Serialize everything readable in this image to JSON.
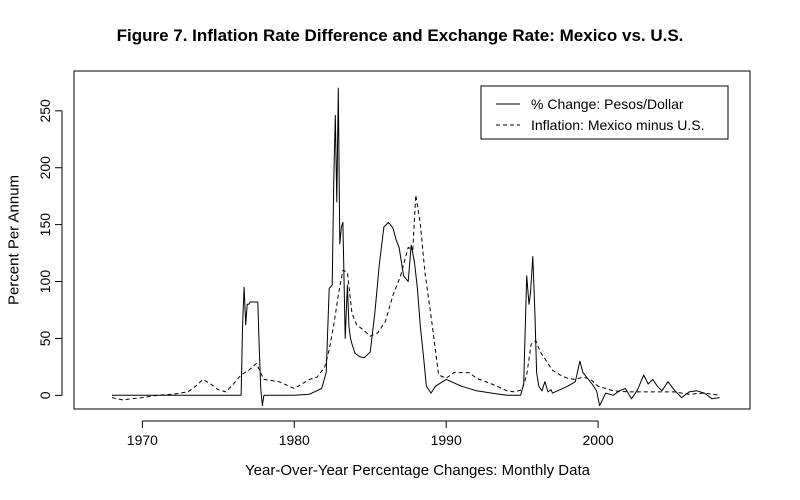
{
  "chart_data": {
    "type": "line",
    "title": "Figure 7. Inflation Rate Difference and Exchange Rate: Mexico vs. U.S.",
    "xlabel": "Year-Over-Year Percentage Changes: Monthly Data",
    "ylabel": "Percent Per Annum",
    "xlim": [
      1965.5,
      2010
    ],
    "ylim": [
      -12,
      285
    ],
    "xticks": [
      1970,
      1980,
      1990,
      2000
    ],
    "yticks": [
      0,
      50,
      100,
      150,
      200,
      250
    ],
    "grid": false,
    "legend_position": "top-right",
    "series": [
      {
        "name": "% Change: Pesos/Dollar",
        "style": "solid",
        "x": [
          1968,
          1970,
          1972,
          1974,
          1976.5,
          1976.6,
          1976.7,
          1976.8,
          1976.9,
          1977,
          1977.1,
          1977.2,
          1977.4,
          1977.6,
          1977.7,
          1977.8,
          1977.9,
          1978,
          1978.3,
          1979,
          1980,
          1981,
          1981.8,
          1982.1,
          1982.3,
          1982.5,
          1982.6,
          1982.7,
          1982.8,
          1982.9,
          1983,
          1983.1,
          1983.2,
          1983.35,
          1983.5,
          1983.6,
          1983.7,
          1983.8,
          1984,
          1984.3,
          1984.6,
          1985,
          1985.3,
          1985.6,
          1985.9,
          1986.2,
          1986.5,
          1986.7,
          1986.9,
          1987.2,
          1987.5,
          1987.7,
          1987.9,
          1988.1,
          1988.3,
          1988.5,
          1988.7,
          1989,
          1989.3,
          1990,
          1991,
          1992,
          1993,
          1994,
          1994.9,
          1995.1,
          1995.3,
          1995.45,
          1995.55,
          1995.7,
          1995.85,
          1995.95,
          1996.1,
          1996.3,
          1996.5,
          1996.7,
          1996.9,
          1997,
          1997.5,
          1998,
          1998.5,
          1998.8,
          1999,
          1999.3,
          1999.6,
          1999.9,
          2000.1,
          2000.5,
          2001,
          2001.4,
          2001.8,
          2002.2,
          2002.6,
          2003,
          2003.3,
          2003.6,
          2003.9,
          2004.2,
          2004.6,
          2005,
          2005.5,
          2006,
          2006.5,
          2007,
          2007.5,
          2008
        ],
        "values": [
          0,
          0,
          0,
          0,
          0,
          62,
          95,
          62,
          80,
          80,
          82,
          82,
          82,
          82,
          40,
          5,
          -9,
          0,
          0,
          0,
          0,
          1,
          6,
          20,
          94,
          97,
          190,
          246,
          170,
          270,
          133,
          148,
          152,
          50,
          97,
          60,
          50,
          45,
          37,
          34,
          33,
          38,
          72,
          115,
          148,
          152,
          147,
          137,
          130,
          105,
          100,
          132,
          118,
          95,
          60,
          35,
          8,
          2,
          8,
          14,
          8,
          4,
          2,
          0,
          0,
          10,
          105,
          80,
          90,
          122,
          70,
          20,
          8,
          4,
          12,
          3,
          5,
          2,
          5,
          8,
          12,
          30,
          20,
          15,
          10,
          4,
          -9,
          2,
          0,
          4,
          6,
          -3,
          5,
          18,
          10,
          14,
          8,
          4,
          12,
          5,
          -2,
          3,
          4,
          2,
          -3,
          -2
        ]
      },
      {
        "name": "Inflation: Mexico minus U.S.",
        "style": "dashed",
        "x": [
          1968,
          1968.7,
          1969.3,
          1970,
          1971,
          1972,
          1973,
          1973.5,
          1974,
          1974.5,
          1975,
          1975.5,
          1976,
          1976.5,
          1977,
          1977.5,
          1978,
          1979,
          1980,
          1981,
          1981.5,
          1982,
          1982.3,
          1982.6,
          1982.9,
          1983.2,
          1983.5,
          1983.8,
          1984.1,
          1984.5,
          1985,
          1985.5,
          1986,
          1986.5,
          1987,
          1987.5,
          1987.8,
          1988,
          1988.3,
          1988.6,
          1989,
          1989.5,
          1990,
          1990.5,
          1991,
          1991.5,
          1992,
          1993,
          1994,
          1994.5,
          1995,
          1995.3,
          1995.6,
          1995.9,
          1996.2,
          1996.5,
          1997,
          1997.5,
          1998,
          1998.5,
          1999,
          1999.5,
          2000,
          2001,
          2002,
          2003,
          2004,
          2005,
          2006,
          2007,
          2008
        ],
        "values": [
          -2,
          -4,
          -3,
          -2,
          0,
          1,
          3,
          8,
          14,
          10,
          5,
          3,
          10,
          18,
          22,
          28,
          14,
          12,
          6,
          14,
          16,
          25,
          40,
          62,
          88,
          110,
          108,
          72,
          62,
          58,
          52,
          55,
          65,
          88,
          105,
          130,
          128,
          176,
          150,
          108,
          70,
          18,
          15,
          20,
          20,
          20,
          15,
          10,
          4,
          3,
          5,
          18,
          45,
          48,
          38,
          32,
          22,
          18,
          15,
          14,
          16,
          14,
          8,
          4,
          3,
          3,
          3,
          3,
          1,
          2,
          0
        ]
      }
    ]
  }
}
